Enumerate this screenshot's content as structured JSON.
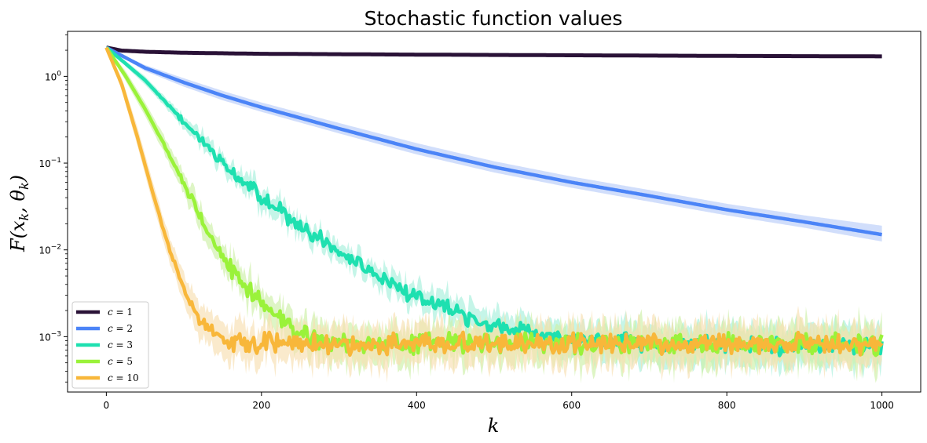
{
  "chart_data": {
    "type": "line",
    "title": "Stochastic function values",
    "xlabel": "k",
    "ylabel": "F(x_k, θ_k)",
    "ylabel_parts": {
      "f": "F(",
      "x": "x",
      "xs": "k",
      "sep": ", ",
      "t": "θ",
      "ts": "k",
      "close": ")"
    },
    "xscale": "linear",
    "yscale": "log",
    "xlim": [
      -50,
      1050
    ],
    "ylim": [
      0.00023,
      3.3
    ],
    "xticks": [
      0,
      200,
      400,
      600,
      800,
      1000
    ],
    "xtick_labels": [
      "0",
      "200",
      "400",
      "600",
      "800",
      "1000"
    ],
    "yticks": [
      0.001,
      0.01,
      0.1,
      1
    ],
    "ytick_labels": [
      {
        "base": "10",
        "exp": "−3"
      },
      {
        "base": "10",
        "exp": "−2"
      },
      {
        "base": "10",
        "exp": "−1"
      },
      {
        "base": "10",
        "exp": "0"
      }
    ],
    "grid": false,
    "legend_position": "lower-left",
    "series": [
      {
        "name": "c = 1",
        "legend_label": {
          "var": "c",
          "eq": " = ",
          "val": "1"
        },
        "color": "#2a1237",
        "band_color": "#2a1237",
        "x": [
          0,
          20,
          50,
          100,
          200,
          400,
          600,
          800,
          1000
        ],
        "y": [
          2.15,
          1.98,
          1.92,
          1.87,
          1.82,
          1.78,
          1.75,
          1.72,
          1.7
        ],
        "upper": [
          2.15,
          2.01,
          1.95,
          1.9,
          1.85,
          1.81,
          1.78,
          1.75,
          1.73
        ],
        "lower": [
          2.15,
          1.95,
          1.89,
          1.84,
          1.79,
          1.75,
          1.72,
          1.69,
          1.67
        ],
        "noise": 0
      },
      {
        "name": "c = 2",
        "legend_label": {
          "var": "c",
          "eq": " = ",
          "val": "2"
        },
        "color": "#4b84f7",
        "band_color": "#b8ccf9",
        "x": [
          0,
          50,
          100,
          150,
          200,
          300,
          400,
          500,
          600,
          700,
          800,
          900,
          1000
        ],
        "y": [
          2.15,
          1.25,
          0.85,
          0.6,
          0.44,
          0.25,
          0.145,
          0.09,
          0.06,
          0.042,
          0.029,
          0.021,
          0.015
        ],
        "upper": [
          2.15,
          1.35,
          0.95,
          0.68,
          0.5,
          0.29,
          0.17,
          0.105,
          0.07,
          0.049,
          0.034,
          0.025,
          0.019
        ],
        "lower": [
          2.15,
          1.15,
          0.76,
          0.53,
          0.39,
          0.22,
          0.126,
          0.078,
          0.052,
          0.036,
          0.025,
          0.018,
          0.0125
        ],
        "noise": 0
      },
      {
        "name": "c = 3",
        "legend_label": {
          "var": "c",
          "eq": " = ",
          "val": "3"
        },
        "color": "#1ee0b0",
        "band_color": "#a6f0dc",
        "x": [
          0,
          25,
          50,
          75,
          100,
          125,
          150,
          200,
          250,
          300,
          350,
          400,
          450,
          500,
          550,
          600,
          700,
          800,
          1000
        ],
        "y": [
          2.15,
          1.4,
          0.9,
          0.52,
          0.3,
          0.17,
          0.095,
          0.041,
          0.019,
          0.0095,
          0.005,
          0.0028,
          0.0019,
          0.00135,
          0.0011,
          0.00095,
          0.00085,
          0.0008,
          0.00078
        ],
        "upper": [
          2.15,
          1.5,
          1.0,
          0.58,
          0.34,
          0.195,
          0.11,
          0.048,
          0.022,
          0.0112,
          0.006,
          0.0034,
          0.0024,
          0.0018,
          0.0015,
          0.0013,
          0.00125,
          0.0012,
          0.00118
        ],
        "lower": [
          2.15,
          1.3,
          0.8,
          0.46,
          0.26,
          0.15,
          0.082,
          0.035,
          0.016,
          0.008,
          0.0042,
          0.0023,
          0.0015,
          0.001,
          0.00078,
          0.00065,
          0.00057,
          0.00052,
          0.0005
        ],
        "noise": 0.12
      },
      {
        "name": "c = 5",
        "legend_label": {
          "var": "c",
          "eq": " = ",
          "val": "5"
        },
        "color": "#9af23a",
        "band_color": "#cdefa6",
        "x": [
          0,
          25,
          50,
          75,
          100,
          125,
          150,
          175,
          200,
          225,
          250,
          275,
          300,
          1000
        ],
        "y": [
          2.15,
          1.0,
          0.42,
          0.16,
          0.058,
          0.021,
          0.0085,
          0.0041,
          0.0024,
          0.0015,
          0.0011,
          0.00092,
          0.00085,
          0.00082
        ],
        "upper": [
          2.15,
          1.15,
          0.5,
          0.2,
          0.075,
          0.028,
          0.011,
          0.0052,
          0.0031,
          0.002,
          0.0015,
          0.0013,
          0.0012,
          0.0012
        ],
        "lower": [
          2.15,
          0.88,
          0.35,
          0.13,
          0.046,
          0.016,
          0.0067,
          0.0032,
          0.0018,
          0.0011,
          0.0008,
          0.00062,
          0.00056,
          0.00054
        ],
        "noise": 0.14
      },
      {
        "name": "c = 10",
        "legend_label": {
          "var": "c",
          "eq": " = ",
          "val": "10"
        },
        "color": "#f8b73a",
        "band_color": "#f7deb0",
        "x": [
          0,
          20,
          40,
          60,
          80,
          100,
          120,
          140,
          160,
          180,
          1000
        ],
        "y": [
          2.15,
          0.8,
          0.2,
          0.045,
          0.011,
          0.0035,
          0.0016,
          0.0011,
          0.00088,
          0.00082,
          0.00082
        ],
        "upper": [
          2.15,
          0.95,
          0.26,
          0.06,
          0.015,
          0.005,
          0.0024,
          0.0016,
          0.0013,
          0.0012,
          0.0012
        ],
        "lower": [
          2.15,
          0.68,
          0.16,
          0.034,
          0.008,
          0.0025,
          0.0011,
          0.00075,
          0.0006,
          0.00055,
          0.00055
        ],
        "noise": 0.14
      }
    ]
  }
}
